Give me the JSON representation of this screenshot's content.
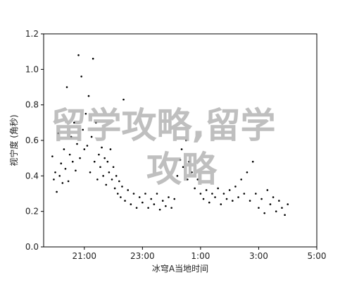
{
  "chart_data": {
    "type": "scatter",
    "xlabel": "冰穹A当地时间",
    "ylabel": "视宁度 (角秒)",
    "watermark": [
      "留学攻略,留学",
      "攻略"
    ],
    "color": "#000000",
    "xlim": [
      19.6,
      29
    ],
    "ylim": [
      0,
      1.2
    ],
    "xticks": [
      {
        "value": 21,
        "label": "21:00"
      },
      {
        "value": 23,
        "label": "23:00"
      },
      {
        "value": 25,
        "label": "1:00"
      },
      {
        "value": 27,
        "label": "3:00"
      },
      {
        "value": 29,
        "label": "5:00"
      }
    ],
    "yticks": [
      {
        "value": 0,
        "label": "0.0"
      },
      {
        "value": 0.2,
        "label": "0.2"
      },
      {
        "value": 0.4,
        "label": "0.4"
      },
      {
        "value": 0.6,
        "label": "0.6"
      },
      {
        "value": 0.8,
        "label": "0.8"
      },
      {
        "value": 1.0,
        "label": "1.0"
      },
      {
        "value": 1.2,
        "label": "1.2"
      }
    ],
    "x": [
      19.9,
      19.95,
      20.0,
      20.05,
      20.1,
      20.15,
      20.2,
      20.25,
      20.3,
      20.35,
      20.4,
      20.45,
      20.5,
      20.55,
      20.6,
      20.65,
      20.7,
      20.75,
      20.8,
      20.85,
      20.9,
      20.95,
      21.0,
      21.05,
      21.1,
      21.15,
      21.2,
      21.25,
      21.3,
      21.35,
      21.4,
      21.45,
      21.5,
      21.55,
      21.6,
      21.65,
      21.7,
      21.75,
      21.8,
      21.85,
      21.9,
      21.95,
      22.0,
      22.05,
      22.1,
      22.15,
      22.2,
      22.25,
      22.3,
      22.35,
      22.4,
      22.5,
      22.6,
      22.7,
      22.8,
      22.9,
      23.0,
      23.1,
      23.2,
      23.3,
      23.4,
      23.5,
      23.6,
      23.7,
      23.8,
      23.9,
      24.0,
      24.1,
      24.2,
      24.3,
      24.35,
      24.4,
      24.5,
      24.55,
      24.6,
      24.7,
      24.8,
      24.9,
      25.0,
      25.1,
      25.2,
      25.3,
      25.4,
      25.5,
      25.6,
      25.7,
      25.8,
      25.9,
      26.0,
      26.1,
      26.2,
      26.3,
      26.4,
      26.5,
      26.6,
      26.7,
      26.8,
      26.9,
      27.0,
      27.1,
      27.2,
      27.3,
      27.4,
      27.5,
      27.6,
      27.7,
      27.8,
      27.9,
      28.0
    ],
    "values": [
      0.51,
      0.38,
      0.42,
      0.31,
      0.64,
      0.4,
      0.47,
      0.36,
      0.55,
      0.44,
      0.9,
      0.37,
      0.52,
      0.62,
      0.48,
      0.7,
      0.43,
      0.58,
      1.08,
      0.5,
      0.96,
      0.66,
      0.55,
      0.75,
      0.57,
      0.85,
      0.42,
      0.62,
      1.06,
      0.48,
      0.7,
      0.38,
      0.52,
      0.45,
      0.56,
      0.4,
      0.5,
      0.35,
      0.48,
      0.42,
      0.55,
      0.38,
      0.45,
      0.33,
      0.4,
      0.3,
      0.37,
      0.28,
      0.34,
      0.83,
      0.26,
      0.32,
      0.24,
      0.3,
      0.22,
      0.28,
      0.25,
      0.3,
      0.22,
      0.27,
      0.24,
      0.3,
      0.21,
      0.26,
      0.23,
      0.28,
      0.22,
      0.27,
      0.4,
      0.49,
      0.55,
      0.45,
      0.6,
      0.38,
      0.48,
      0.42,
      0.33,
      0.38,
      0.3,
      0.27,
      0.32,
      0.25,
      0.3,
      0.28,
      0.33,
      0.24,
      0.3,
      0.27,
      0.32,
      0.26,
      0.34,
      0.28,
      0.38,
      0.3,
      0.42,
      0.26,
      0.48,
      0.3,
      0.22,
      0.27,
      0.19,
      0.32,
      0.24,
      0.28,
      0.2,
      0.26,
      0.22,
      0.18,
      0.24
    ]
  }
}
